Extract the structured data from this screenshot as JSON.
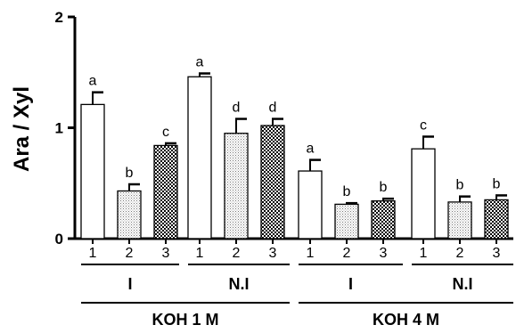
{
  "chart_data": {
    "type": "bar",
    "title": "",
    "ylabel": "Ara / Xyl",
    "xlabel": "",
    "ylim": [
      0,
      2
    ],
    "yticks": [
      0,
      1,
      2
    ],
    "grid": false,
    "colors": {
      "pattern_1": "#ffffff",
      "pattern_2": "#bfbfbf",
      "pattern_3": "#000000",
      "bar_stroke": "#000000"
    },
    "patterns": [
      "open",
      "dotted",
      "checkered"
    ],
    "groups": [
      {
        "condition": "I",
        "extraction": "KOH 1 M",
        "bars": [
          {
            "category": "1",
            "value": 1.21,
            "error": 0.11,
            "letter": "a"
          },
          {
            "category": "2",
            "value": 0.43,
            "error": 0.06,
            "letter": "b"
          },
          {
            "category": "3",
            "value": 0.84,
            "error": 0.02,
            "letter": "c"
          }
        ]
      },
      {
        "condition": "N.I",
        "extraction": "KOH 1 M",
        "bars": [
          {
            "category": "1",
            "value": 1.46,
            "error": 0.03,
            "letter": "a"
          },
          {
            "category": "2",
            "value": 0.95,
            "error": 0.13,
            "letter": "d"
          },
          {
            "category": "3",
            "value": 1.02,
            "error": 0.06,
            "letter": "d"
          }
        ]
      },
      {
        "condition": "I",
        "extraction": "KOH 4 M",
        "bars": [
          {
            "category": "1",
            "value": 0.61,
            "error": 0.1,
            "letter": "a"
          },
          {
            "category": "2",
            "value": 0.31,
            "error": 0.01,
            "letter": "b"
          },
          {
            "category": "3",
            "value": 0.34,
            "error": 0.02,
            "letter": "b"
          }
        ]
      },
      {
        "condition": "N.I",
        "extraction": "KOH 4 M",
        "bars": [
          {
            "category": "1",
            "value": 0.81,
            "error": 0.11,
            "letter": "c"
          },
          {
            "category": "2",
            "value": 0.33,
            "error": 0.05,
            "letter": "b"
          },
          {
            "category": "3",
            "value": 0.35,
            "error": 0.04,
            "letter": "b"
          }
        ]
      }
    ],
    "extraction_labels": [
      "KOH 1 M",
      "KOH 4 M"
    ]
  }
}
